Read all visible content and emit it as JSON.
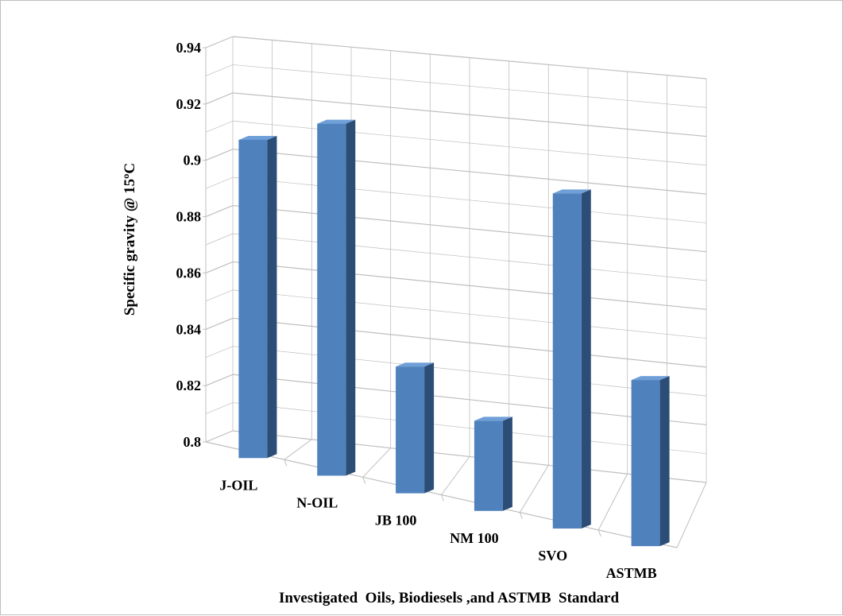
{
  "chart_data": {
    "type": "bar",
    "categories": [
      "J-OIL",
      "N-OIL",
      "JB 100",
      "NM 100",
      "SVO",
      "ASTMB"
    ],
    "values": [
      0.913,
      0.925,
      0.845,
      0.832,
      0.919,
      0.859
    ],
    "ylabel": "Specific gravity @ 15ºC",
    "xlabel": "Investigated  Oils, Biodiesels ,and ASTMB  Standard",
    "ylim": [
      0.8,
      0.94
    ],
    "yticks": [
      "0.8",
      "0.82",
      "0.84",
      "0.86",
      "0.88",
      "0.9",
      "0.92",
      "0.94"
    ],
    "grid": true,
    "style": "3d-column",
    "colors": {
      "bar_front": "#4f81bd",
      "bar_side": "#2c4d75",
      "bar_top": "#6f9fd8",
      "grid": "#bfbfbf"
    }
  }
}
